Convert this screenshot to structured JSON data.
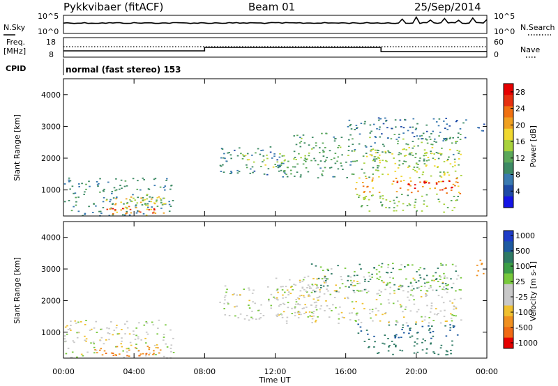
{
  "header": {
    "station": "Pykkvibaer (fitACF)",
    "beam": "Beam 01",
    "date": "25/Sep/2014"
  },
  "nsky_panel": {
    "left_label": "N.Sky",
    "left_ticks": [
      "10^5",
      "10^0"
    ],
    "right_label": "N.Search",
    "right_ticks": [
      "10^5",
      "10^0"
    ]
  },
  "freq_panel": {
    "left_label_1": "Freq.",
    "left_label_2": "[MHz]",
    "left_ticks": [
      "18",
      "8"
    ],
    "right_label": "Nave",
    "right_ticks": [
      "60",
      "0"
    ]
  },
  "cpid_panel": {
    "label": "CPID",
    "text": "normal (fast stereo) 153"
  },
  "colors": {
    "power_scale": [
      "#1414e6",
      "#1e4aa6",
      "#3a7ab0",
      "#3d8a64",
      "#5ba85a",
      "#a8d23c",
      "#f0d830",
      "#f0a020",
      "#f07010",
      "#e63010",
      "#e60000"
    ],
    "velocity_scale": [
      "#1e3cc8",
      "#1e5aa0",
      "#2e7a64",
      "#3c9e46",
      "#78c83c",
      "#c8c8c8",
      "#c8c8c8",
      "#f0c030",
      "#f09020",
      "#f06a14",
      "#e60000"
    ]
  },
  "chart_data": [
    {
      "type": "heatmap",
      "panel": "power",
      "ylabel": "Slant Range [km]",
      "xlim": [
        0,
        24
      ],
      "ylim": [
        180,
        4500
      ],
      "yticks": [
        "1000",
        "2000",
        "3000",
        "4000"
      ],
      "colorbar_label": "Power [dB]",
      "colorbar_ticks": [
        "4",
        "8",
        "12",
        "16",
        "20",
        "24",
        "28"
      ],
      "colorbar_range": [
        0,
        30
      ],
      "regions": [
        {
          "t0": 0.0,
          "t1": 6.2,
          "r0": 200,
          "r1": 1400,
          "value": 9
        },
        {
          "t0": 1.8,
          "t1": 5.8,
          "r0": 220,
          "r1": 800,
          "value": 19
        },
        {
          "t0": 2.0,
          "t1": 5.2,
          "r0": 250,
          "r1": 450,
          "value": 26
        },
        {
          "t0": 3.5,
          "t1": 5.5,
          "r0": 500,
          "r1": 900,
          "value": 15
        },
        {
          "t0": 8.8,
          "t1": 12.5,
          "r0": 1500,
          "r1": 2400,
          "value": 8
        },
        {
          "t0": 10.0,
          "t1": 14.0,
          "r0": 1700,
          "r1": 2200,
          "value": 14
        },
        {
          "t0": 12.0,
          "t1": 18.0,
          "r0": 1400,
          "r1": 1800,
          "value": 10
        },
        {
          "t0": 13.0,
          "t1": 22.5,
          "r0": 1800,
          "r1": 2800,
          "value": 11
        },
        {
          "t0": 16.0,
          "t1": 22.8,
          "r0": 2600,
          "r1": 3300,
          "value": 7
        },
        {
          "t0": 17.0,
          "t1": 22.5,
          "r0": 1400,
          "r1": 2400,
          "value": 16
        },
        {
          "t0": 16.5,
          "t1": 22.5,
          "r0": 900,
          "r1": 1400,
          "value": 21
        },
        {
          "t0": 18.8,
          "t1": 22.0,
          "r0": 1000,
          "r1": 1300,
          "value": 28
        },
        {
          "t0": 16.5,
          "t1": 22.5,
          "r0": 300,
          "r1": 900,
          "value": 13
        },
        {
          "t0": 23.2,
          "t1": 24.0,
          "r0": 2800,
          "r1": 3300,
          "value": 6
        }
      ]
    },
    {
      "type": "heatmap",
      "panel": "velocity",
      "ylabel": "Slant Range [km]",
      "xlabel": "Time UT",
      "xlim": [
        0,
        24
      ],
      "ylim": [
        180,
        4500
      ],
      "yticks": [
        "1000",
        "2000",
        "3000",
        "4000"
      ],
      "xticks": [
        "00:00",
        "04:00",
        "08:00",
        "12:00",
        "16:00",
        "20:00",
        "00:00"
      ],
      "colorbar_label": "Velocity [m s-1]",
      "colorbar_ticks": [
        "1000",
        "500",
        "100",
        "25",
        "-25",
        "-100",
        "-500",
        "-1000"
      ],
      "regions": [
        {
          "t0": 0.0,
          "t1": 6.2,
          "r0": 200,
          "r1": 1400,
          "value": 0
        },
        {
          "t0": 1.5,
          "t1": 5.5,
          "r0": 250,
          "r1": 600,
          "value": -200
        },
        {
          "t0": 2.0,
          "t1": 4.8,
          "r0": 250,
          "r1": 420,
          "value": -600
        },
        {
          "t0": 8.8,
          "t1": 14.5,
          "r0": 1400,
          "r1": 2500,
          "value": 5
        },
        {
          "t0": 12.0,
          "t1": 22.5,
          "r0": 1300,
          "r1": 2800,
          "value": 0
        },
        {
          "t0": 14.0,
          "t1": 22.5,
          "r0": 2300,
          "r1": 3200,
          "value": 60
        },
        {
          "t0": 16.5,
          "t1": 22.3,
          "r0": 800,
          "r1": 1300,
          "value": 300
        },
        {
          "t0": 17.0,
          "t1": 22.0,
          "r0": 300,
          "r1": 800,
          "value": 200
        },
        {
          "t0": 23.2,
          "t1": 24.0,
          "r0": 2800,
          "r1": 3300,
          "value": -150
        }
      ]
    }
  ]
}
